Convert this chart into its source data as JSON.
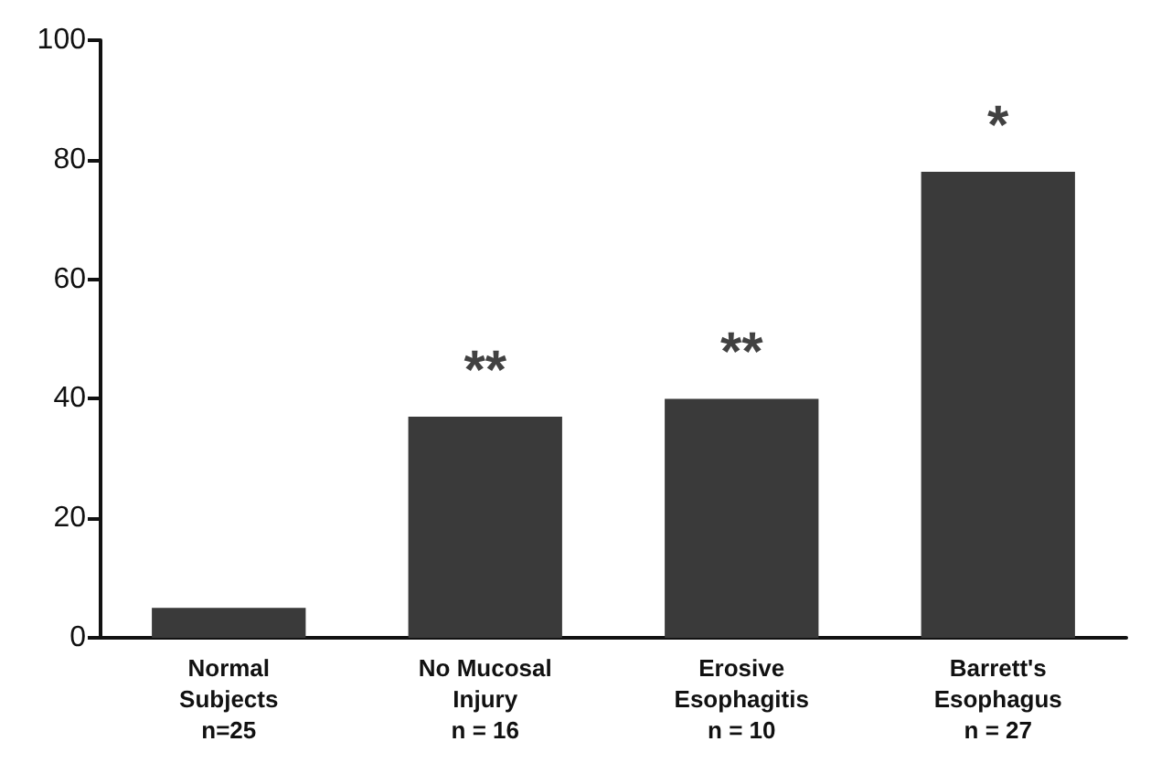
{
  "chart_data": {
    "type": "bar",
    "categories": [
      "Normal\nSubjects\nn=25",
      "No Mucosal\nInjury\nn = 16",
      "Erosive\nEsophagitis\nn = 10",
      "Barrett's\nEsophagus\nn = 27"
    ],
    "values": [
      5,
      37,
      40,
      78
    ],
    "color": "#3a3a3a",
    "ylim": [
      0,
      100
    ],
    "yticks": [
      0,
      20,
      40,
      60,
      80,
      100
    ],
    "grid": false,
    "annotations": [
      {
        "text": "**",
        "x": "No Mucosal\nInjury\nn = 16",
        "y": 37
      },
      {
        "text": "**",
        "x": "Erosive\nEsophagitis\nn = 10",
        "y": 40
      },
      {
        "text": "*",
        "x": "Barrett's\nEsophagus\nn = 27",
        "y": 78
      }
    ]
  }
}
